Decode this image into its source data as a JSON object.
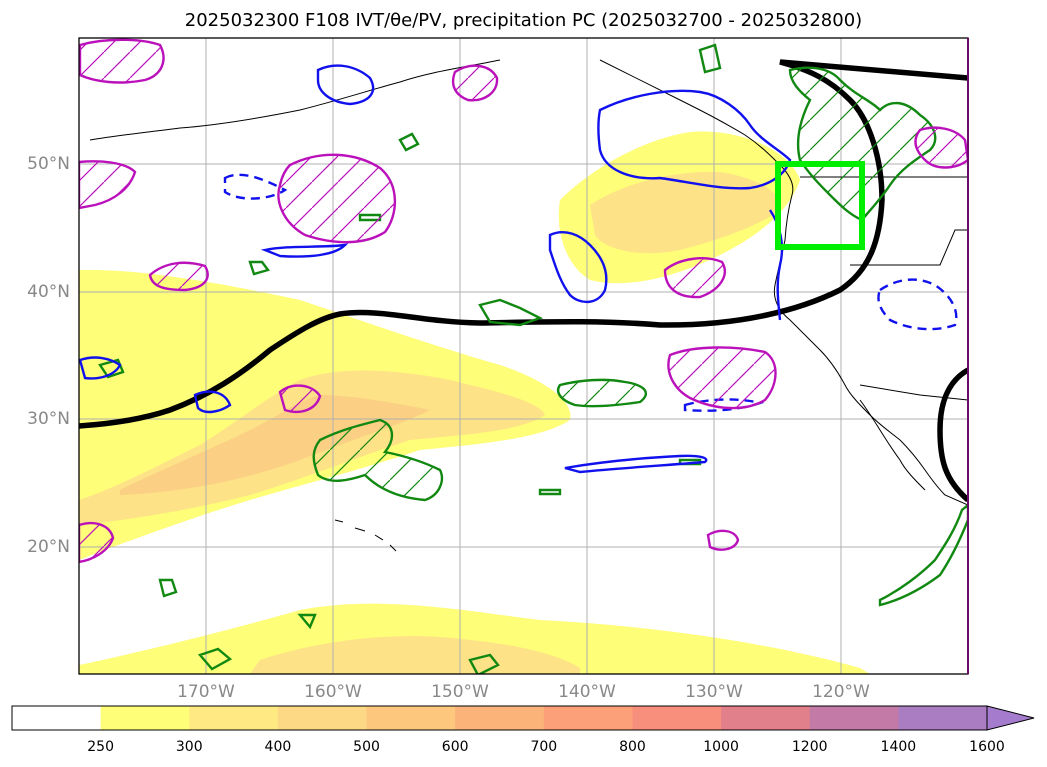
{
  "title": "2025032300 F108 IVT/θe/PV, precipitation PC (2025032700 - 2025032800)",
  "map": {
    "lat_labels": [
      "50°N",
      "40°N",
      "30°N",
      "20°N"
    ],
    "lon_labels": [
      "170°W",
      "160°W",
      "150°W",
      "140°W",
      "130°W",
      "120°W"
    ],
    "extent": {
      "lon_min": -180,
      "lon_max": -110,
      "lat_min": 10,
      "lat_max": 60
    },
    "highlight_box": {
      "lon_min": -125,
      "lon_max": -118,
      "lat_min": 43.5,
      "lat_max": 50
    },
    "colors": {
      "ivt_light": "#fefe78",
      "ivt_medium": "#fde287",
      "ivt_strong": "#fbcf84",
      "precip_pc": "#118811",
      "pv_hatched": "#bb11bb",
      "theta_e": "#1111ee",
      "thick_contour": "#000000",
      "box": "#00ee00",
      "coastline": "#000000"
    }
  },
  "colorbar": {
    "levels": [
      "250",
      "300",
      "400",
      "500",
      "600",
      "700",
      "800",
      "1000",
      "1200",
      "1400",
      "1600"
    ],
    "colors": [
      "#ffffff",
      "#fefe78",
      "#fee983",
      "#fed985",
      "#fdc77e",
      "#fcb37a",
      "#fca079",
      "#f78f7c",
      "#e17f8b",
      "#c47aa6",
      "#aa7dc3",
      "#a47bcd"
    ],
    "extend": "max"
  }
}
